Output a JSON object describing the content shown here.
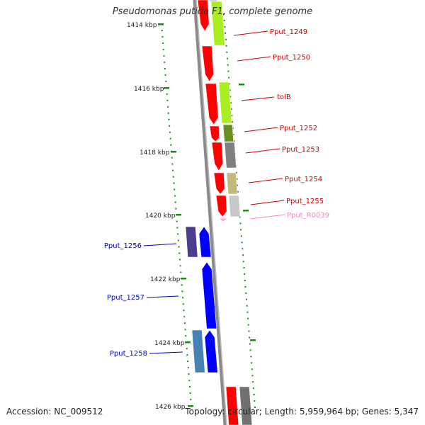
{
  "title": "Pseudomonas putida F1, complete genome",
  "footer": {
    "accession": "Accession: NC_009512",
    "summary": "Topology: circular; Length: 5,959,964 bp; Genes: 5,347"
  },
  "colors": {
    "backbone": "#8a8a8a",
    "tick": "#1a8a1a",
    "forward_gene": "#ff0000",
    "reverse_gene": "#0000ff",
    "label_forward": "#cc0000",
    "label_reverse": "#0000bb",
    "label_rna": "#ee88bb"
  },
  "scale": {
    "unit": "kbp",
    "labels": [
      "1414 kbp",
      "1416 kbp",
      "1418 kbp",
      "1420 kbp",
      "1422 kbp",
      "1424 kbp",
      "1426 kbp"
    ]
  },
  "genes": [
    {
      "label": "Pput_1249",
      "strand": "+",
      "color": "#ff0000",
      "cog_color": "#aaee22"
    },
    {
      "label": "Pput_1250",
      "strand": "+",
      "color": "#ff0000",
      "cog_color": null
    },
    {
      "label": "tolB",
      "strand": "+",
      "color": "#ff0000",
      "cog_color": "#aaee22"
    },
    {
      "label": "Pput_1252",
      "strand": "+",
      "color": "#ff0000",
      "cog_color": "#6b8e23"
    },
    {
      "label": "Pput_1253",
      "strand": "+",
      "color": "#ff0000",
      "cog_color": "#808080"
    },
    {
      "label": "Pput_1254",
      "strand": "+",
      "color": "#ff0000",
      "cog_color": "#c2b97a"
    },
    {
      "label": "Pput_1255",
      "strand": "+",
      "color": "#ff0000",
      "cog_color": "#c8c8c8"
    },
    {
      "label": "Pput_R0039",
      "strand": "+",
      "color": "#ffaacc",
      "cog_color": null
    },
    {
      "label": "Pput_1256",
      "strand": "-",
      "color": "#0000ff",
      "cog_color": "#4b3c8c"
    },
    {
      "label": "Pput_1257",
      "strand": "-",
      "color": "#0000ff",
      "cog_color": null
    },
    {
      "label": "Pput_1258",
      "strand": "-",
      "color": "#0000ff",
      "cog_color": "#4682b4"
    }
  ]
}
